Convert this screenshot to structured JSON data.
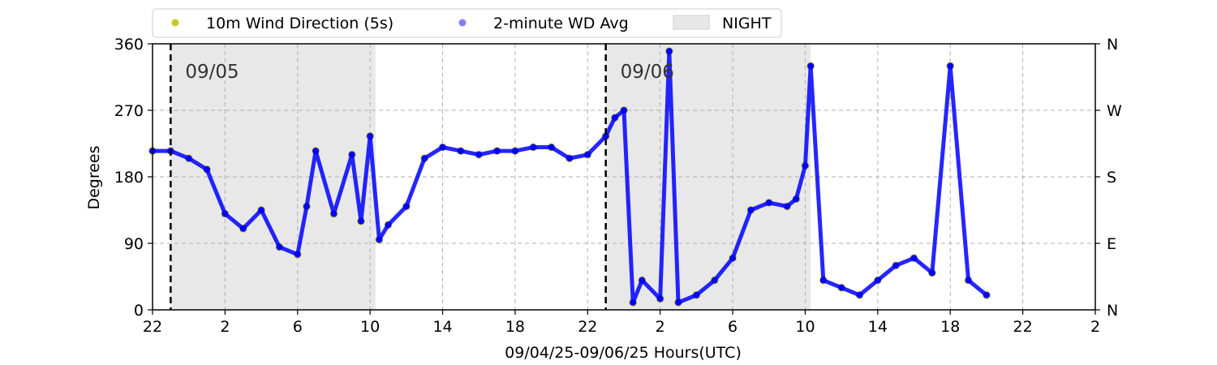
{
  "chart_data": {
    "type": "scatter",
    "xlabel": "09/04/25-09/06/25  Hours(UTC)",
    "ylabel": "Degrees",
    "x_tick_labels": [
      "22",
      "2",
      "6",
      "10",
      "14",
      "18",
      "22",
      "2",
      "6",
      "10",
      "14",
      "18",
      "22",
      "2"
    ],
    "y_ticks": [
      0,
      90,
      180,
      270,
      360
    ],
    "y_tick_labels": [
      "0",
      "90",
      "180",
      "270",
      "360"
    ],
    "right_tick_labels": [
      "N",
      "E",
      "S",
      "W",
      "N"
    ],
    "xlim_hours": [
      0,
      52
    ],
    "ylim": [
      0,
      360
    ],
    "grid": true,
    "legend_placement": "top, above plot",
    "date_markers": [
      {
        "hour": 1.0,
        "label": "09/05"
      },
      {
        "hour": 25.0,
        "label": "09/06"
      }
    ],
    "night_spans": [
      [
        1.0,
        12.3
      ],
      [
        25.0,
        36.3
      ]
    ],
    "colors": {
      "wind": "#bfbf00",
      "avg": "#0000ff",
      "night": "#e8e8e8"
    },
    "series": [
      {
        "name": "10m Wind Direction (5s)",
        "x": [
          0,
          1,
          2,
          3,
          4,
          5,
          6,
          7,
          8,
          8.5,
          9,
          10,
          11,
          11.5,
          12,
          12.5,
          13,
          14,
          15,
          16,
          17,
          18,
          19,
          20,
          21,
          22,
          23,
          24,
          25,
          25.5,
          26,
          26.5,
          27,
          28,
          28.5,
          29,
          30,
          31,
          32,
          33,
          34,
          35,
          35.5,
          36,
          36.3,
          37,
          38,
          39,
          40,
          41,
          42,
          43,
          44,
          45,
          46
        ],
        "values": [
          215,
          215,
          205,
          190,
          130,
          110,
          135,
          85,
          75,
          140,
          215,
          130,
          210,
          120,
          235,
          95,
          115,
          140,
          205,
          220,
          215,
          210,
          215,
          215,
          220,
          220,
          205,
          210,
          235,
          260,
          270,
          10,
          40,
          15,
          350,
          10,
          20,
          40,
          70,
          135,
          145,
          140,
          150,
          195,
          330,
          40,
          30,
          20,
          40,
          60,
          70,
          50,
          330,
          40,
          20
        ]
      },
      {
        "name": "2-minute WD Avg",
        "x": [
          0,
          1,
          2,
          3,
          4,
          5,
          6,
          7,
          8,
          8.5,
          9,
          10,
          11,
          11.5,
          12,
          12.5,
          13,
          14,
          15,
          16,
          17,
          18,
          19,
          20,
          21,
          22,
          23,
          24,
          25,
          25.5,
          26,
          26.5,
          27,
          28,
          28.5,
          29,
          30,
          31,
          32,
          33,
          34,
          35,
          35.5,
          36,
          36.3,
          37,
          38,
          39,
          40,
          41,
          42,
          43,
          44,
          45,
          46
        ],
        "values": [
          215,
          215,
          205,
          190,
          130,
          110,
          135,
          85,
          75,
          140,
          215,
          130,
          210,
          120,
          235,
          95,
          115,
          140,
          205,
          220,
          215,
          210,
          215,
          215,
          220,
          220,
          205,
          210,
          235,
          260,
          270,
          10,
          40,
          15,
          350,
          10,
          20,
          40,
          70,
          135,
          145,
          140,
          150,
          195,
          330,
          40,
          30,
          20,
          40,
          60,
          70,
          50,
          330,
          40,
          20
        ]
      }
    ],
    "legend": [
      {
        "label": "10m Wind Direction (5s)",
        "kind": "point",
        "color": "#bfbf00"
      },
      {
        "label": "2-minute WD Avg",
        "kind": "point",
        "color": "#6b6bff"
      },
      {
        "label": "NIGHT",
        "kind": "patch",
        "color": "#e8e8e8"
      }
    ]
  }
}
